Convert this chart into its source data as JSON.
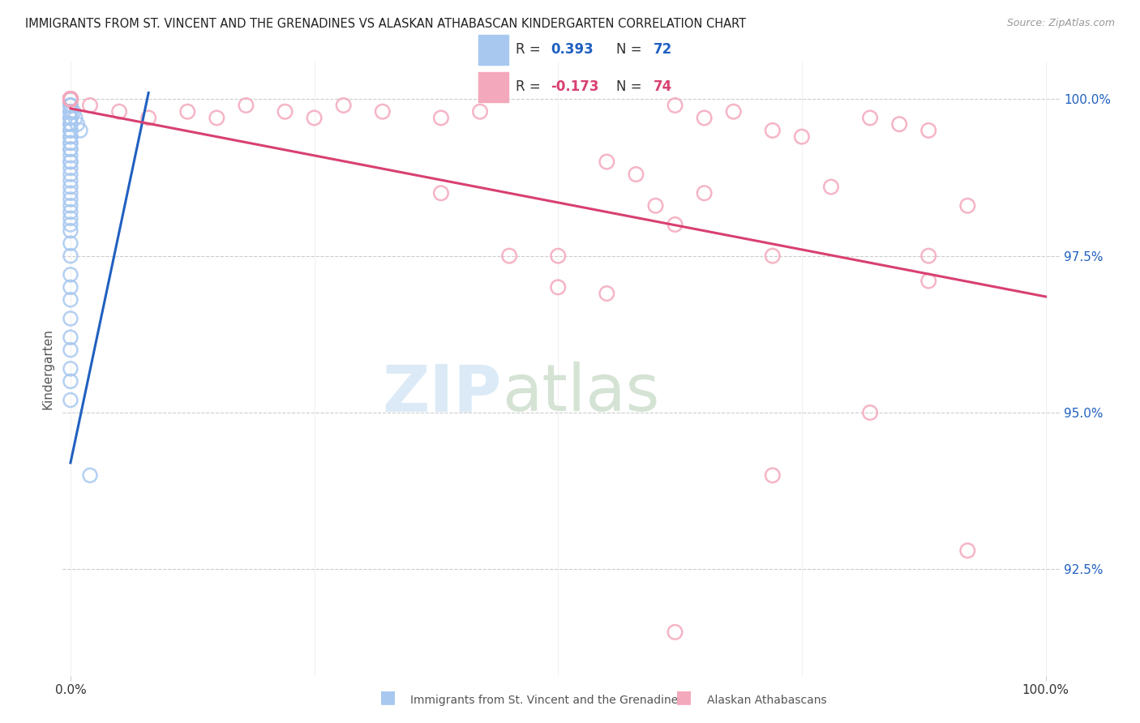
{
  "title": "IMMIGRANTS FROM ST. VINCENT AND THE GRENADINES VS ALASKAN ATHABASCAN KINDERGARTEN CORRELATION CHART",
  "source": "Source: ZipAtlas.com",
  "ylabel": "Kindergarten",
  "ylabel_right_labels": [
    "100.0%",
    "97.5%",
    "95.0%",
    "92.5%"
  ],
  "ylabel_right_values": [
    1.0,
    0.975,
    0.95,
    0.925
  ],
  "y_min": 0.908,
  "y_max": 1.006,
  "x_min": -0.008,
  "x_max": 1.015,
  "blue_R": 0.393,
  "blue_N": 72,
  "pink_R": -0.173,
  "pink_N": 74,
  "blue_label": "Immigrants from St. Vincent and the Grenadines",
  "pink_label": "Alaskan Athabascans",
  "blue_color": "#a8c8f0",
  "pink_color": "#f4a8bc",
  "blue_line_color": "#2060c0",
  "pink_line_color": "#d84070",
  "background_color": "#ffffff",
  "blue_trend_x0": 0.0,
  "blue_trend_y0": 0.942,
  "blue_trend_x1": 0.08,
  "blue_trend_y1": 1.001,
  "pink_trend_x0": 0.0,
  "pink_trend_y0": 0.9985,
  "pink_trend_x1": 1.0,
  "pink_trend_y1": 0.9685,
  "blue_x": [
    0.0,
    0.0,
    0.0,
    0.0,
    0.0,
    0.0,
    0.0,
    0.0,
    0.0,
    0.0,
    0.0,
    0.0,
    0.0,
    0.0,
    0.0,
    0.0,
    0.0,
    0.0,
    0.0,
    0.0,
    0.0,
    0.0,
    0.0,
    0.0,
    0.0,
    0.0,
    0.0,
    0.0,
    0.0,
    0.0,
    0.0,
    0.0,
    0.0,
    0.0,
    0.0,
    0.0,
    0.0,
    0.0,
    0.0,
    0.0,
    0.0,
    0.0,
    0.0,
    0.0,
    0.0,
    0.0,
    0.0,
    0.0,
    0.0,
    0.0,
    0.0,
    0.0,
    0.0,
    0.0,
    0.0,
    0.0,
    0.0,
    0.0,
    0.0,
    0.0,
    0.0,
    0.0,
    0.0,
    0.0,
    0.0,
    0.0,
    0.0,
    0.003,
    0.005,
    0.007,
    0.01,
    0.02
  ],
  "blue_y": [
    1.0,
    1.0,
    1.0,
    1.0,
    1.0,
    1.0,
    1.0,
    1.0,
    1.0,
    1.0,
    1.0,
    1.0,
    1.0,
    1.0,
    1.0,
    0.999,
    0.999,
    0.999,
    0.999,
    0.999,
    0.998,
    0.998,
    0.998,
    0.998,
    0.997,
    0.997,
    0.997,
    0.997,
    0.997,
    0.996,
    0.996,
    0.996,
    0.996,
    0.995,
    0.995,
    0.995,
    0.994,
    0.994,
    0.993,
    0.993,
    0.992,
    0.992,
    0.991,
    0.99,
    0.99,
    0.989,
    0.988,
    0.987,
    0.986,
    0.985,
    0.984,
    0.983,
    0.982,
    0.981,
    0.98,
    0.979,
    0.977,
    0.975,
    0.972,
    0.97,
    0.968,
    0.965,
    0.962,
    0.96,
    0.957,
    0.955,
    0.952,
    0.998,
    0.997,
    0.996,
    0.995,
    0.94
  ],
  "pink_x": [
    0.0,
    0.0,
    0.0,
    0.0,
    0.0,
    0.0,
    0.0,
    0.0,
    0.0,
    0.0,
    0.0,
    0.0,
    0.0,
    0.0,
    0.0,
    0.0,
    0.0,
    0.0,
    0.0,
    0.0,
    0.0,
    0.0,
    0.0,
    0.0,
    0.0,
    0.0,
    0.0,
    0.0,
    0.0,
    0.0,
    0.0,
    0.0,
    0.0,
    0.0,
    0.0,
    0.02,
    0.05,
    0.08,
    0.12,
    0.15,
    0.18,
    0.22,
    0.25,
    0.28,
    0.32,
    0.38,
    0.42,
    0.5,
    0.55,
    0.58,
    0.62,
    0.65,
    0.68,
    0.72,
    0.75,
    0.78,
    0.82,
    0.85,
    0.88,
    0.92,
    0.72,
    0.45,
    0.5,
    0.55,
    0.6,
    0.65,
    0.82,
    0.88,
    0.92,
    0.62,
    0.38,
    0.72,
    0.88,
    0.62
  ],
  "pink_y": [
    1.0,
    1.0,
    1.0,
    1.0,
    1.0,
    1.0,
    1.0,
    1.0,
    1.0,
    1.0,
    1.0,
    1.0,
    1.0,
    1.0,
    1.0,
    1.0,
    1.0,
    1.0,
    1.0,
    1.0,
    1.0,
    1.0,
    1.0,
    1.0,
    1.0,
    1.0,
    1.0,
    1.0,
    1.0,
    1.0,
    1.0,
    1.0,
    1.0,
    1.0,
    1.0,
    0.999,
    0.998,
    0.997,
    0.998,
    0.997,
    0.999,
    0.998,
    0.997,
    0.999,
    0.998,
    0.997,
    0.998,
    0.975,
    0.99,
    0.988,
    0.999,
    0.997,
    0.998,
    0.995,
    0.994,
    0.986,
    0.997,
    0.996,
    0.995,
    0.983,
    0.975,
    0.975,
    0.97,
    0.969,
    0.983,
    0.985,
    0.95,
    0.975,
    0.928,
    0.98,
    0.985,
    0.94,
    0.971,
    0.915
  ]
}
